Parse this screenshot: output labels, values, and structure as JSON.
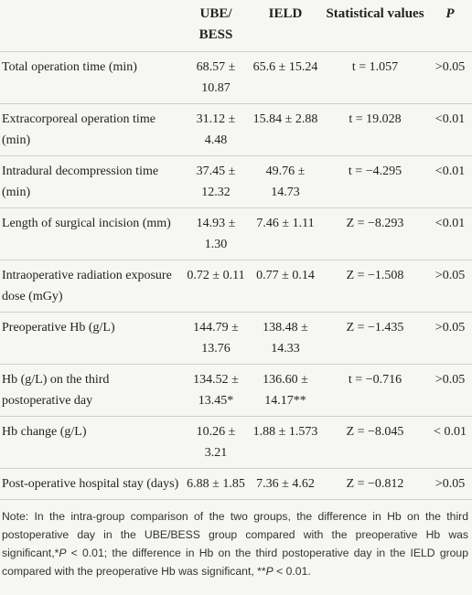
{
  "table": {
    "header": [
      "",
      "UBE/ BESS",
      "IELD",
      "Statistical values",
      "P"
    ],
    "rows": [
      [
        "Total operation time (min)",
        "68.57 ± 10.87",
        "65.6 ± 15.24",
        "t = 1.057",
        ">0.05"
      ],
      [
        "Extracorporeal operation time (min)",
        "31.12 ± 4.48",
        "15.84 ± 2.88",
        "t = 19.028",
        "<0.01"
      ],
      [
        "Intradural decompression time (min)",
        "37.45 ± 12.32",
        "49.76 ± 14.73",
        "t = −4.295",
        "<0.01"
      ],
      [
        "Length of surgical incision (mm)",
        "14.93 ± 1.30",
        "7.46 ± 1.11",
        "Z = −8.293",
        "<0.01"
      ],
      [
        "Intraoperative radiation exposure dose (mGy)",
        "0.72 ± 0.11",
        "0.77 ± 0.14",
        "Z = −1.508",
        ">0.05"
      ],
      [
        "Preoperative Hb (g/L)",
        "144.79 ± 13.76",
        "138.48 ± 14.33",
        "Z = −1.435",
        ">0.05"
      ],
      [
        "Hb (g/L) on the third postoperative day",
        "134.52 ± 13.45*",
        "136.60 ± 14.17**",
        "t = −0.716",
        ">0.05"
      ],
      [
        "Hb change (g/L)",
        "10.26 ± 3.21",
        "1.88 ± 1.573",
        "Z = −8.045",
        "< 0.01"
      ],
      [
        "Post-operative hospital stay (days)",
        "6.88 ± 1.85",
        "7.36 ± 4.62",
        "Z = −0.812",
        ">0.05"
      ]
    ],
    "note": [
      "Note: In the intra-group comparison of the two groups, the difference in Hb on the third postoperative day in the UBE/BESS group compared with the preoperative Hb was significant,*",
      "P",
      " < 0.01; the difference in Hb on the third postoperative day in the IELD group compared with the preoperative Hb was significant, **",
      "P",
      " < 0.01."
    ]
  }
}
